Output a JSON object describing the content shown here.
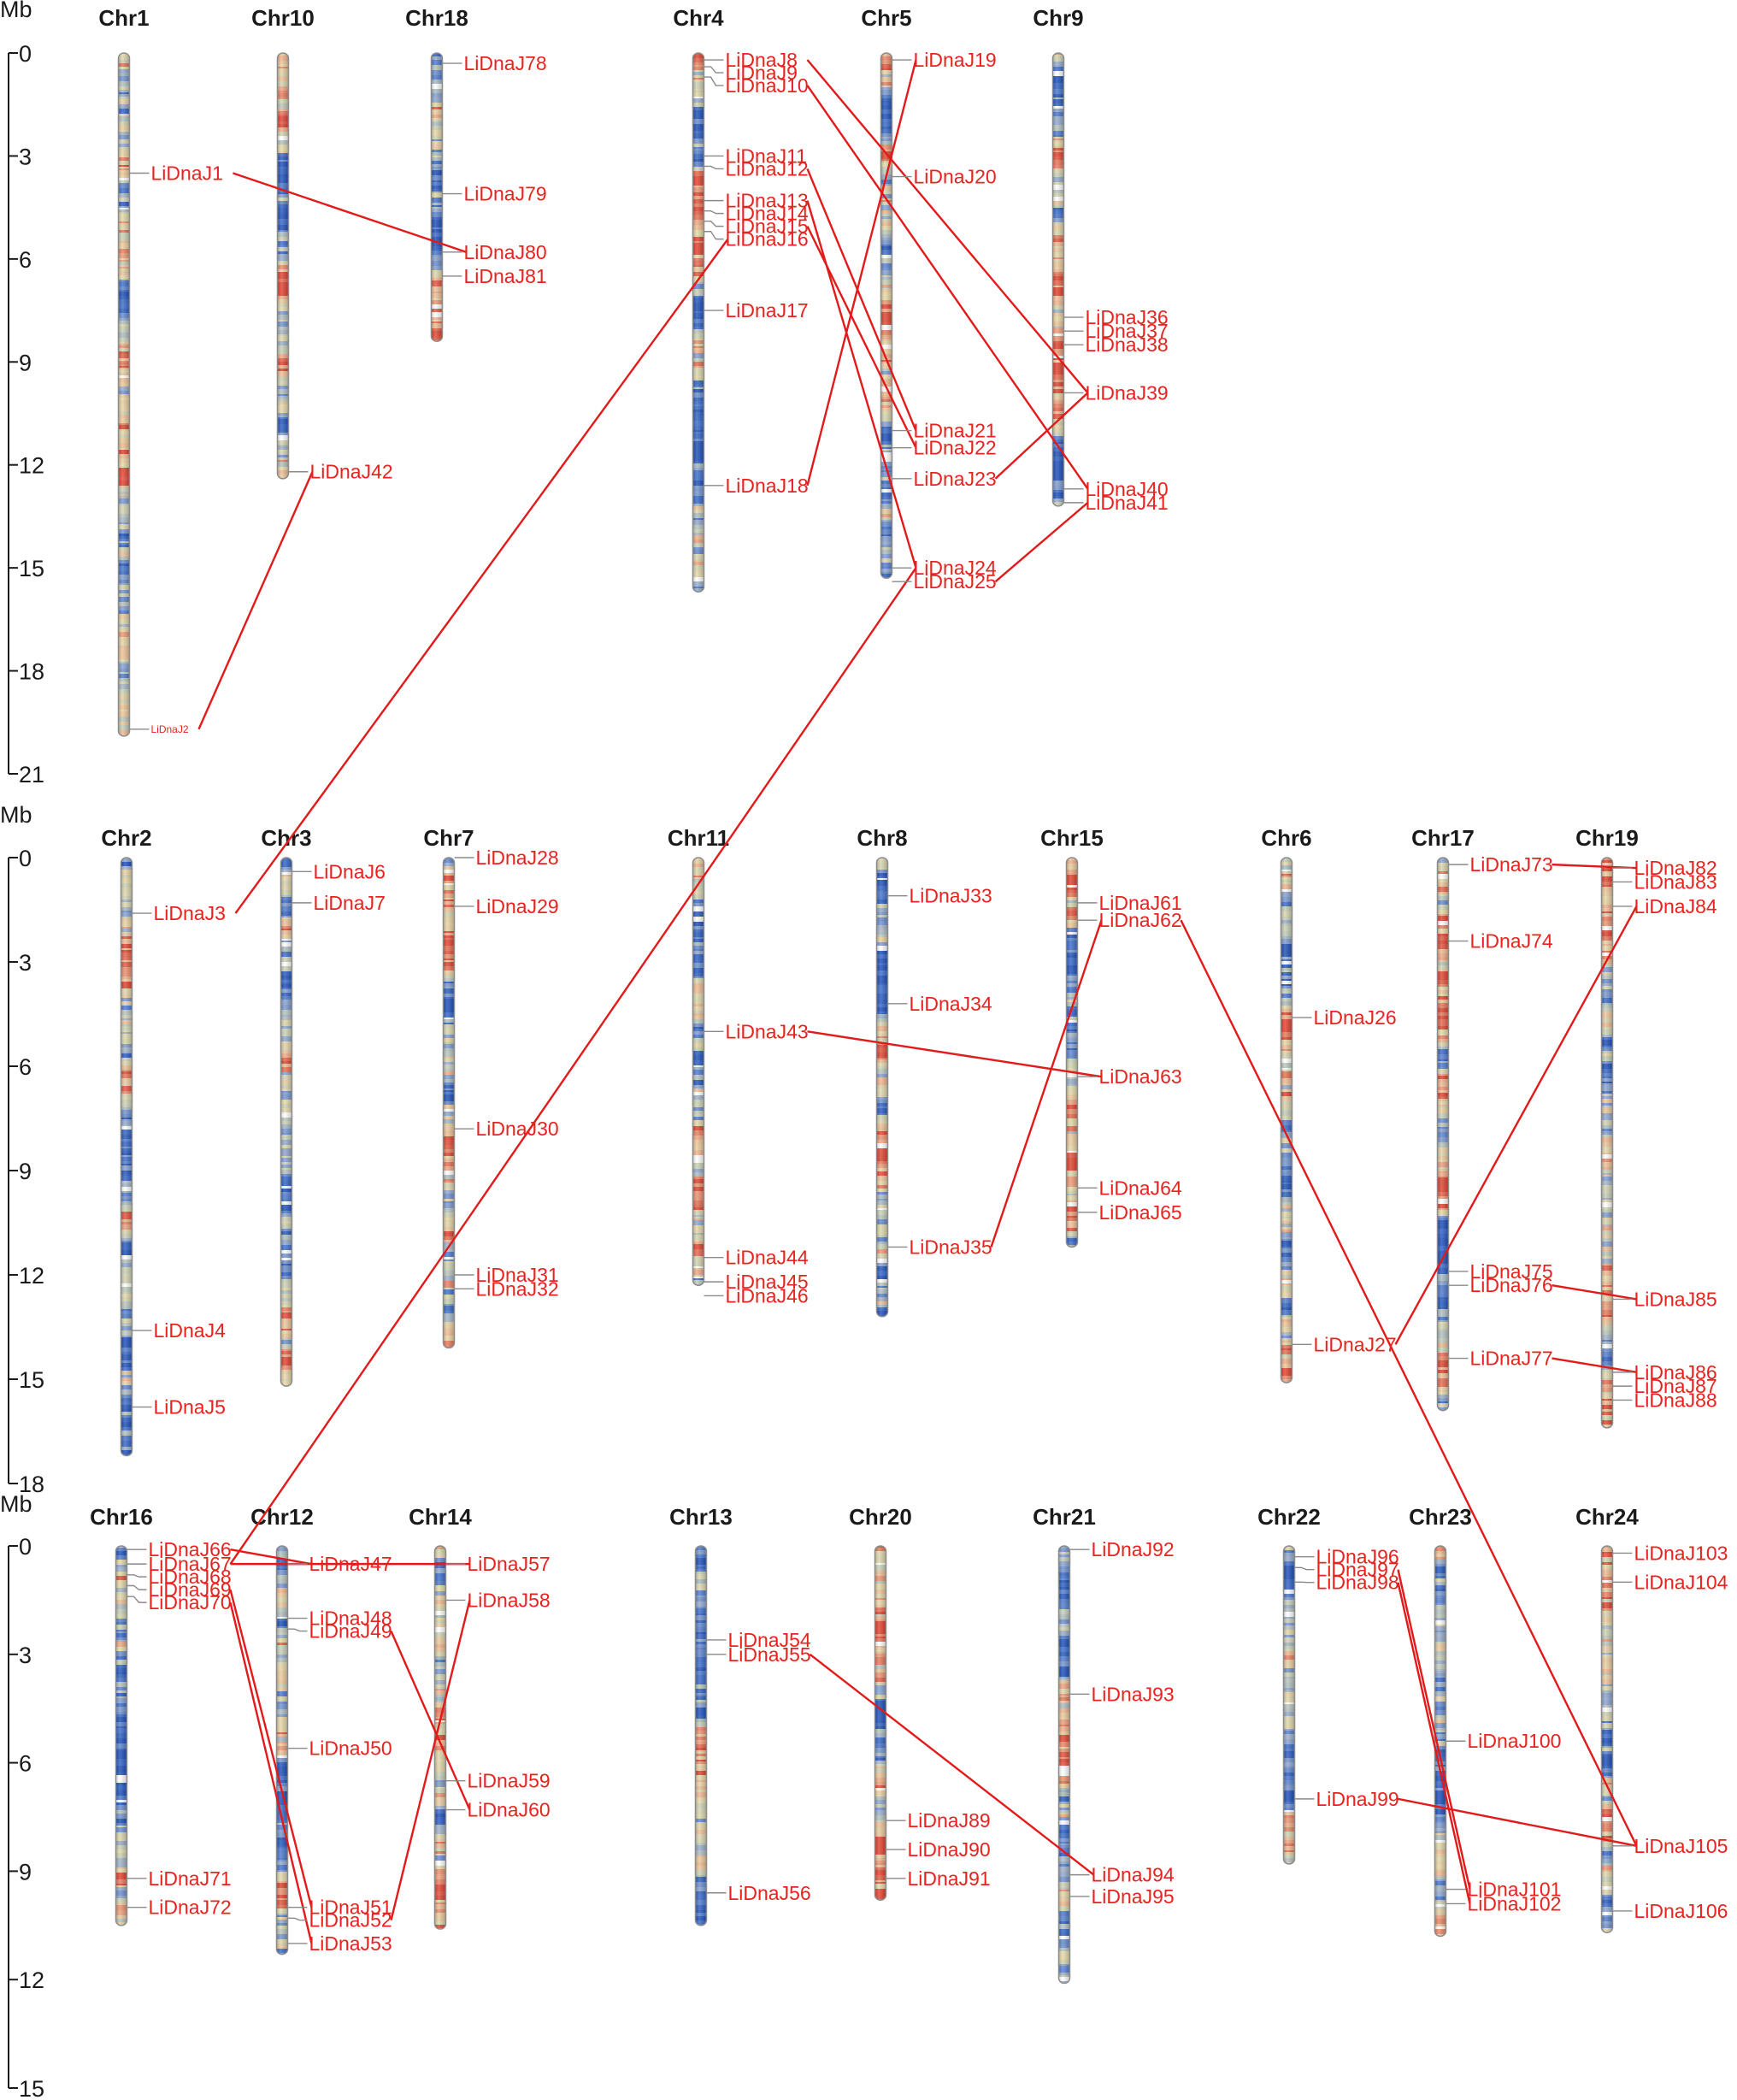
{
  "axis_unit": "Mb",
  "panels": [
    {
      "id": "row1",
      "max": 21,
      "ticks": [
        0,
        3,
        6,
        9,
        12,
        15,
        18,
        21
      ]
    },
    {
      "id": "row2",
      "max": 18,
      "ticks": [
        0,
        3,
        6,
        9,
        12,
        15,
        18
      ]
    },
    {
      "id": "row3",
      "max": 15,
      "ticks": [
        0,
        3,
        6,
        9,
        12,
        15
      ]
    }
  ],
  "chromosomes": [
    {
      "name": "Chr1",
      "panel": 0,
      "len": 19.9,
      "genes": [
        {
          "id": "LiDnaJ1",
          "pos": 3.5
        },
        {
          "id": "LiDnaJ2",
          "pos": 19.7,
          "tiny": true
        }
      ]
    },
    {
      "name": "Chr10",
      "panel": 0,
      "len": 12.4,
      "genes": [
        {
          "id": "LiDnaJ42",
          "pos": 12.2
        }
      ]
    },
    {
      "name": "Chr18",
      "panel": 0,
      "len": 8.4,
      "genes": [
        {
          "id": "LiDnaJ78",
          "pos": 0.3
        },
        {
          "id": "LiDnaJ79",
          "pos": 4.1
        },
        {
          "id": "LiDnaJ80",
          "pos": 5.8
        },
        {
          "id": "LiDnaJ81",
          "pos": 6.5
        }
      ]
    },
    {
      "name": "Chr4",
      "panel": 0,
      "len": 15.7,
      "genes": [
        {
          "id": "LiDnaJ8",
          "pos": 0.2
        },
        {
          "id": "LiDnaJ9",
          "pos": 0.4
        },
        {
          "id": "LiDnaJ10",
          "pos": 0.7
        },
        {
          "id": "LiDnaJ11",
          "pos": 3.0
        },
        {
          "id": "LiDnaJ12",
          "pos": 3.3
        },
        {
          "id": "LiDnaJ13",
          "pos": 4.3
        },
        {
          "id": "LiDnaJ14",
          "pos": 4.6
        },
        {
          "id": "LiDnaJ15",
          "pos": 4.9
        },
        {
          "id": "LiDnaJ16",
          "pos": 5.2
        },
        {
          "id": "LiDnaJ17",
          "pos": 7.5
        },
        {
          "id": "LiDnaJ18",
          "pos": 12.6
        }
      ]
    },
    {
      "name": "Chr5",
      "panel": 0,
      "len": 15.3,
      "genes": [
        {
          "id": "LiDnaJ19",
          "pos": 0.2
        },
        {
          "id": "LiDnaJ20",
          "pos": 3.6
        },
        {
          "id": "LiDnaJ21",
          "pos": 11.0
        },
        {
          "id": "LiDnaJ22",
          "pos": 11.5
        },
        {
          "id": "LiDnaJ23",
          "pos": 12.4
        },
        {
          "id": "LiDnaJ24",
          "pos": 15.0
        },
        {
          "id": "LiDnaJ25",
          "pos": 15.4
        }
      ]
    },
    {
      "name": "Chr9",
      "panel": 0,
      "len": 13.2,
      "genes": [
        {
          "id": "LiDnaJ36",
          "pos": 7.7
        },
        {
          "id": "LiDnaJ37",
          "pos": 8.1
        },
        {
          "id": "LiDnaJ38",
          "pos": 8.5
        },
        {
          "id": "LiDnaJ39",
          "pos": 9.9
        },
        {
          "id": "LiDnaJ40",
          "pos": 12.7
        },
        {
          "id": "LiDnaJ41",
          "pos": 13.1
        }
      ]
    },
    {
      "name": "Chr2",
      "panel": 1,
      "len": 17.2,
      "genes": [
        {
          "id": "LiDnaJ3",
          "pos": 1.6
        },
        {
          "id": "LiDnaJ4",
          "pos": 13.6
        },
        {
          "id": "LiDnaJ5",
          "pos": 15.8
        }
      ]
    },
    {
      "name": "Chr3",
      "panel": 1,
      "len": 15.2,
      "genes": [
        {
          "id": "LiDnaJ6",
          "pos": 0.4
        },
        {
          "id": "LiDnaJ7",
          "pos": 1.3
        }
      ]
    },
    {
      "name": "Chr7",
      "panel": 1,
      "len": 14.1,
      "genes": [
        {
          "id": "LiDnaJ28",
          "pos": 0.0
        },
        {
          "id": "LiDnaJ29",
          "pos": 1.4
        },
        {
          "id": "LiDnaJ30",
          "pos": 7.8
        },
        {
          "id": "LiDnaJ31",
          "pos": 12.0
        },
        {
          "id": "LiDnaJ32",
          "pos": 12.4
        }
      ]
    },
    {
      "name": "Chr11",
      "panel": 1,
      "len": 12.3,
      "genes": [
        {
          "id": "LiDnaJ43",
          "pos": 5.0
        },
        {
          "id": "LiDnaJ44",
          "pos": 11.5
        },
        {
          "id": "LiDnaJ45",
          "pos": 12.2
        },
        {
          "id": "LiDnaJ46",
          "pos": 12.6
        }
      ]
    },
    {
      "name": "Chr8",
      "panel": 1,
      "len": 13.2,
      "genes": [
        {
          "id": "LiDnaJ33",
          "pos": 1.1
        },
        {
          "id": "LiDnaJ34",
          "pos": 4.2
        },
        {
          "id": "LiDnaJ35",
          "pos": 11.2
        }
      ]
    },
    {
      "name": "Chr15",
      "panel": 1,
      "len": 11.2,
      "genes": [
        {
          "id": "LiDnaJ61",
          "pos": 1.3
        },
        {
          "id": "LiDnaJ62",
          "pos": 1.8
        },
        {
          "id": "LiDnaJ63",
          "pos": 6.3
        },
        {
          "id": "LiDnaJ64",
          "pos": 9.5
        },
        {
          "id": "LiDnaJ65",
          "pos": 10.2
        }
      ]
    },
    {
      "name": "Chr6",
      "panel": 1,
      "len": 15.1,
      "genes": [
        {
          "id": "LiDnaJ26",
          "pos": 4.6
        },
        {
          "id": "LiDnaJ27",
          "pos": 14.0
        }
      ]
    },
    {
      "name": "Chr17",
      "panel": 1,
      "len": 15.9,
      "genes": [
        {
          "id": "LiDnaJ73",
          "pos": 0.2
        },
        {
          "id": "LiDnaJ74",
          "pos": 2.4
        },
        {
          "id": "LiDnaJ75",
          "pos": 11.9
        },
        {
          "id": "LiDnaJ76",
          "pos": 12.3
        },
        {
          "id": "LiDnaJ77",
          "pos": 14.4
        }
      ]
    },
    {
      "name": "Chr19",
      "panel": 1,
      "len": 16.4,
      "genes": [
        {
          "id": "LiDnaJ82",
          "pos": 0.3
        },
        {
          "id": "LiDnaJ83",
          "pos": 0.7
        },
        {
          "id": "LiDnaJ84",
          "pos": 1.4
        },
        {
          "id": "LiDnaJ85",
          "pos": 12.7
        },
        {
          "id": "LiDnaJ86",
          "pos": 14.8
        },
        {
          "id": "LiDnaJ87",
          "pos": 15.2
        },
        {
          "id": "LiDnaJ88",
          "pos": 15.6
        }
      ]
    },
    {
      "name": "Chr16",
      "panel": 2,
      "len": 10.5,
      "genes": [
        {
          "id": "LiDnaJ66",
          "pos": 0.1
        },
        {
          "id": "LiDnaJ67",
          "pos": 0.5
        },
        {
          "id": "LiDnaJ68",
          "pos": 0.8
        },
        {
          "id": "LiDnaJ69",
          "pos": 1.1
        },
        {
          "id": "LiDnaJ70",
          "pos": 1.4
        },
        {
          "id": "LiDnaJ71",
          "pos": 9.2
        },
        {
          "id": "LiDnaJ72",
          "pos": 10.0
        }
      ]
    },
    {
      "name": "Chr12",
      "panel": 2,
      "len": 11.3,
      "genes": [
        {
          "id": "LiDnaJ47",
          "pos": 0.5
        },
        {
          "id": "LiDnaJ48",
          "pos": 2.0
        },
        {
          "id": "LiDnaJ49",
          "pos": 2.3
        },
        {
          "id": "LiDnaJ50",
          "pos": 5.6
        },
        {
          "id": "LiDnaJ51",
          "pos": 10.0
        },
        {
          "id": "LiDnaJ52",
          "pos": 10.3
        },
        {
          "id": "LiDnaJ53",
          "pos": 11.0
        }
      ]
    },
    {
      "name": "Chr14",
      "panel": 2,
      "len": 10.6,
      "genes": [
        {
          "id": "LiDnaJ57",
          "pos": 0.5
        },
        {
          "id": "LiDnaJ58",
          "pos": 1.5
        },
        {
          "id": "LiDnaJ59",
          "pos": 6.5
        },
        {
          "id": "LiDnaJ60",
          "pos": 7.3
        }
      ]
    },
    {
      "name": "Chr13",
      "panel": 2,
      "len": 10.5,
      "genes": [
        {
          "id": "LiDnaJ54",
          "pos": 2.6
        },
        {
          "id": "LiDnaJ55",
          "pos": 3.0
        },
        {
          "id": "LiDnaJ56",
          "pos": 9.6
        }
      ]
    },
    {
      "name": "Chr20",
      "panel": 2,
      "len": 9.8,
      "genes": [
        {
          "id": "LiDnaJ89",
          "pos": 7.6
        },
        {
          "id": "LiDnaJ90",
          "pos": 8.4
        },
        {
          "id": "LiDnaJ91",
          "pos": 9.2
        }
      ]
    },
    {
      "name": "Chr21",
      "panel": 2,
      "len": 12.1,
      "genes": [
        {
          "id": "LiDnaJ92",
          "pos": 0.1
        },
        {
          "id": "LiDnaJ93",
          "pos": 4.1
        },
        {
          "id": "LiDnaJ94",
          "pos": 9.1
        },
        {
          "id": "LiDnaJ95",
          "pos": 9.7
        }
      ]
    },
    {
      "name": "Chr22",
      "panel": 2,
      "len": 8.8,
      "genes": [
        {
          "id": "LiDnaJ96",
          "pos": 0.3
        },
        {
          "id": "LiDnaJ97",
          "pos": 0.6
        },
        {
          "id": "LiDnaJ98",
          "pos": 1.0
        },
        {
          "id": "LiDnaJ99",
          "pos": 7.0
        }
      ]
    },
    {
      "name": "Chr23",
      "panel": 2,
      "len": 10.8,
      "genes": [
        {
          "id": "LiDnaJ100",
          "pos": 5.4
        },
        {
          "id": "LiDnaJ101",
          "pos": 9.5
        },
        {
          "id": "LiDnaJ102",
          "pos": 9.9
        }
      ]
    },
    {
      "name": "Chr24",
      "panel": 2,
      "len": 10.7,
      "genes": [
        {
          "id": "LiDnaJ103",
          "pos": 0.2
        },
        {
          "id": "LiDnaJ104",
          "pos": 1.0
        },
        {
          "id": "LiDnaJ105",
          "pos": 8.3
        },
        {
          "id": "LiDnaJ106",
          "pos": 10.1
        }
      ]
    }
  ],
  "links": [
    [
      "LiDnaJ1",
      "LiDnaJ80"
    ],
    [
      "LiDnaJ2",
      "LiDnaJ42"
    ],
    [
      "LiDnaJ3",
      "LiDnaJ16"
    ],
    [
      "LiDnaJ8",
      "LiDnaJ39"
    ],
    [
      "LiDnaJ10",
      "LiDnaJ40"
    ],
    [
      "LiDnaJ12",
      "LiDnaJ21"
    ],
    [
      "LiDnaJ13",
      "LiDnaJ24"
    ],
    [
      "LiDnaJ15",
      "LiDnaJ22"
    ],
    [
      "LiDnaJ18",
      "LiDnaJ19"
    ],
    [
      "LiDnaJ23",
      "LiDnaJ39"
    ],
    [
      "LiDnaJ25",
      "LiDnaJ41"
    ],
    [
      "LiDnaJ43",
      "LiDnaJ63"
    ],
    [
      "LiDnaJ35",
      "LiDnaJ62"
    ],
    [
      "LiDnaJ62",
      "LiDnaJ105"
    ],
    [
      "LiDnaJ27",
      "LiDnaJ84"
    ],
    [
      "LiDnaJ73",
      "LiDnaJ82"
    ],
    [
      "LiDnaJ76",
      "LiDnaJ85"
    ],
    [
      "LiDnaJ77",
      "LiDnaJ86"
    ],
    [
      "LiDnaJ24",
      "LiDnaJ67"
    ],
    [
      "LiDnaJ66",
      "LiDnaJ47"
    ],
    [
      "LiDnaJ67",
      "LiDnaJ57"
    ],
    [
      "LiDnaJ69",
      "LiDnaJ51"
    ],
    [
      "LiDnaJ70",
      "LiDnaJ53"
    ],
    [
      "LiDnaJ49",
      "LiDnaJ60"
    ],
    [
      "LiDnaJ52",
      "LiDnaJ58"
    ],
    [
      "LiDnaJ55",
      "LiDnaJ94"
    ],
    [
      "LiDnaJ97",
      "LiDnaJ101"
    ],
    [
      "LiDnaJ98",
      "LiDnaJ102"
    ],
    [
      "LiDnaJ99",
      "LiDnaJ105"
    ]
  ],
  "colors": {
    "link": "#e21a1a",
    "gene_label": "#e8231f",
    "density_low": "#2f5fbf",
    "density_mid": "#c9d2b0",
    "density_high": "#e0392f"
  }
}
